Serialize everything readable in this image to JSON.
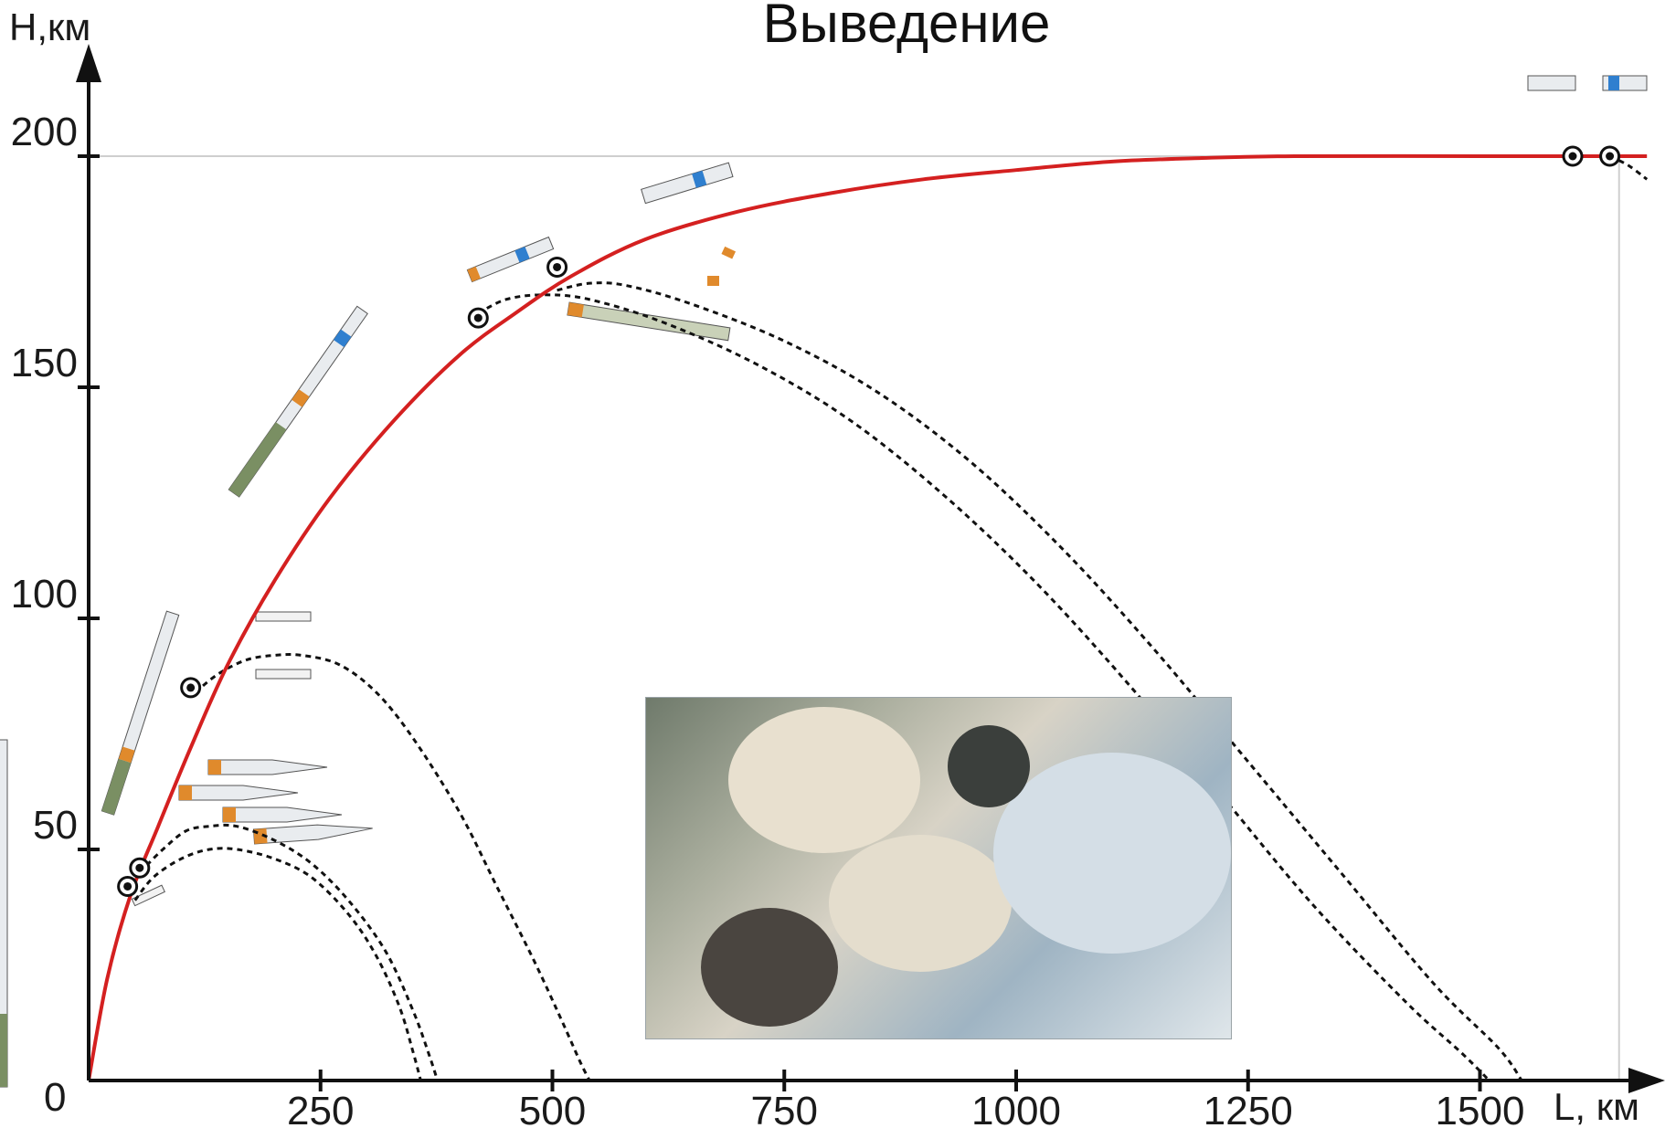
{
  "chart_data": {
    "type": "line",
    "title": "Выведение",
    "xlabel": "L, км",
    "ylabel": "H,км",
    "origin_label": "0",
    "xlim": [
      0,
      1680
    ],
    "ylim": [
      0,
      210
    ],
    "x_ticks": [
      250,
      500,
      750,
      1000,
      1250,
      1500
    ],
    "y_ticks": [
      50,
      100,
      150,
      200
    ],
    "grid": false,
    "reference_lines": {
      "y": 200,
      "x": 1650
    },
    "colors": {
      "ascent": "#d42020",
      "fall": "#111111",
      "ref": "#cfcfcf",
      "axis": "#111111"
    },
    "series": [
      {
        "style": "solid",
        "points": [
          [
            0,
            0
          ],
          [
            20,
            22
          ],
          [
            45,
            40
          ],
          [
            75,
            55
          ],
          [
            110,
            72
          ],
          [
            150,
            90
          ],
          [
            200,
            108
          ],
          [
            260,
            126
          ],
          [
            330,
            143
          ],
          [
            400,
            157
          ],
          [
            460,
            166
          ],
          [
            520,
            174
          ],
          [
            600,
            182
          ],
          [
            700,
            188
          ],
          [
            800,
            192
          ],
          [
            900,
            195
          ],
          [
            1000,
            197
          ],
          [
            1100,
            198.8
          ],
          [
            1200,
            199.6
          ],
          [
            1300,
            200
          ],
          [
            1500,
            200
          ],
          [
            1680,
            200
          ]
        ]
      },
      {
        "style": "dashed",
        "points": [
          [
            50,
            39
          ],
          [
            70,
            44
          ],
          [
            100,
            48
          ],
          [
            130,
            50
          ],
          [
            160,
            50
          ],
          [
            200,
            48
          ],
          [
            240,
            44
          ],
          [
            280,
            36
          ],
          [
            310,
            27
          ],
          [
            335,
            16
          ],
          [
            350,
            6
          ],
          [
            358,
            0
          ]
        ]
      },
      {
        "style": "dashed",
        "points": [
          [
            55,
            45
          ],
          [
            80,
            50
          ],
          [
            105,
            54
          ],
          [
            130,
            55
          ],
          [
            160,
            55
          ],
          [
            200,
            52
          ],
          [
            240,
            47
          ],
          [
            280,
            39
          ],
          [
            320,
            28
          ],
          [
            350,
            15
          ],
          [
            368,
            5
          ],
          [
            376,
            0
          ]
        ]
      },
      {
        "style": "dashed",
        "points": [
          [
            115,
            84
          ],
          [
            140,
            88
          ],
          [
            170,
            91
          ],
          [
            200,
            92
          ],
          [
            230,
            92
          ],
          [
            270,
            90
          ],
          [
            310,
            84
          ],
          [
            350,
            74
          ],
          [
            400,
            58
          ],
          [
            440,
            42
          ],
          [
            480,
            26
          ],
          [
            510,
            13
          ],
          [
            530,
            4
          ],
          [
            540,
            0
          ]
        ]
      },
      {
        "style": "dashed",
        "points": [
          [
            420,
            166
          ],
          [
            450,
            169
          ],
          [
            490,
            170
          ],
          [
            540,
            169
          ],
          [
            620,
            164
          ],
          [
            720,
            155
          ],
          [
            820,
            143
          ],
          [
            920,
            127
          ],
          [
            1020,
            108
          ],
          [
            1120,
            86
          ],
          [
            1220,
            62
          ],
          [
            1320,
            38
          ],
          [
            1420,
            17
          ],
          [
            1480,
            6
          ],
          [
            1510,
            0
          ]
        ]
      },
      {
        "style": "dashed",
        "points": [
          [
            505,
            171
          ],
          [
            540,
            172.5
          ],
          [
            580,
            172
          ],
          [
            650,
            168
          ],
          [
            750,
            160
          ],
          [
            850,
            149
          ],
          [
            950,
            134
          ],
          [
            1050,
            115
          ],
          [
            1150,
            93
          ],
          [
            1250,
            69
          ],
          [
            1350,
            45
          ],
          [
            1450,
            21
          ],
          [
            1520,
            7
          ],
          [
            1545,
            0
          ]
        ]
      },
      {
        "style": "dashed",
        "points": [
          [
            1640,
            200
          ],
          [
            1660,
            198
          ],
          [
            1680,
            195
          ]
        ]
      }
    ],
    "events": [
      [
        42,
        42
      ],
      [
        55,
        46
      ],
      [
        110,
        85
      ],
      [
        420,
        165
      ],
      [
        505,
        176
      ],
      [
        1600,
        200
      ],
      [
        1640,
        200
      ]
    ]
  }
}
